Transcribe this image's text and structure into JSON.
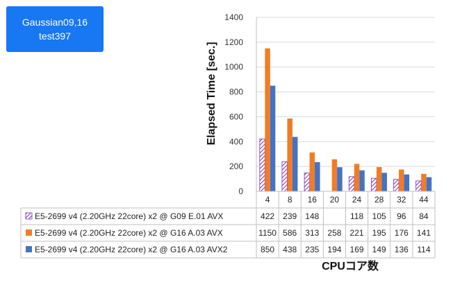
{
  "badge": {
    "line1": "Gaussian09,16",
    "line2": "test397"
  },
  "chart_data": {
    "type": "bar",
    "title": "",
    "ylabel": "Elapsed Time [sec.]",
    "xlabel": "CPUコア数",
    "ylim": [
      0,
      1400
    ],
    "yticks": [
      0,
      200,
      400,
      600,
      800,
      1000,
      1200,
      1400
    ],
    "grid": true,
    "legend": "data-table",
    "categories": [
      "4",
      "8",
      "16",
      "20",
      "24",
      "28",
      "32",
      "44"
    ],
    "series": [
      {
        "name": "E5-2699 v4 (2.20GHz 22core) x2 @ G09 E.01 AVX",
        "color": "#7a2eb8",
        "pattern": "hatch",
        "values": [
          422,
          239,
          148,
          null,
          118,
          105,
          96,
          84
        ]
      },
      {
        "name": "E5-2699 v4 (2.20GHz 22core) x2 @ G16 A.03 AVX",
        "color": "#f07d26",
        "pattern": "solid",
        "values": [
          1150,
          586,
          313,
          258,
          221,
          195,
          176,
          141
        ]
      },
      {
        "name": "E5-2699 v4 (2.20GHz 22core) x2 @ G16 A.03 AVX2",
        "color": "#4472c4",
        "pattern": "solid",
        "values": [
          850,
          438,
          235,
          194,
          169,
          149,
          136,
          114
        ]
      }
    ]
  }
}
